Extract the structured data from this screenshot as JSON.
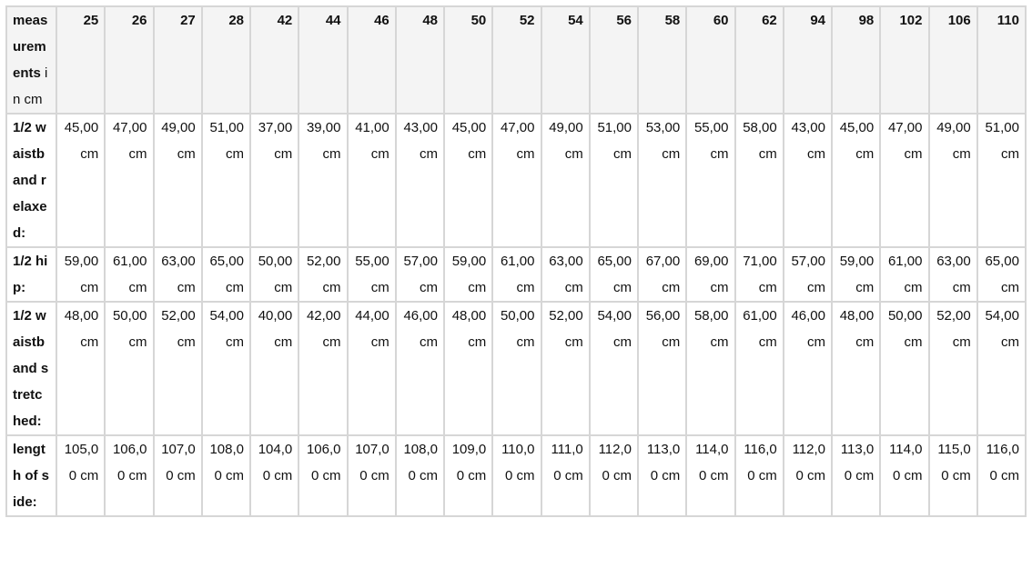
{
  "table": {
    "corner_bold": "measurements",
    "corner_normal": " in cm",
    "sizes": [
      "25",
      "26",
      "27",
      "28",
      "42",
      "44",
      "46",
      "48",
      "50",
      "52",
      "54",
      "56",
      "58",
      "60",
      "62",
      "94",
      "98",
      "102",
      "106",
      "110"
    ],
    "rows": [
      {
        "label": "1/2 waistband relaxed:",
        "values": [
          "45,00 cm",
          "47,00 cm",
          "49,00 cm",
          "51,00 cm",
          "37,00 cm",
          "39,00 cm",
          "41,00 cm",
          "43,00 cm",
          "45,00 cm",
          "47,00 cm",
          "49,00 cm",
          "51,00 cm",
          "53,00 cm",
          "55,00 cm",
          "58,00 cm",
          "43,00 cm",
          "45,00 cm",
          "47,00 cm",
          "49,00 cm",
          "51,00 cm"
        ]
      },
      {
        "label": "1/2 hip:",
        "values": [
          "59,00 cm",
          "61,00 cm",
          "63,00 cm",
          "65,00 cm",
          "50,00 cm",
          "52,00 cm",
          "55,00 cm",
          "57,00 cm",
          "59,00 cm",
          "61,00 cm",
          "63,00 cm",
          "65,00 cm",
          "67,00 cm",
          "69,00 cm",
          "71,00 cm",
          "57,00 cm",
          "59,00 cm",
          "61,00 cm",
          "63,00 cm",
          "65,00 cm"
        ]
      },
      {
        "label": "1/2 waistband stretched:",
        "values": [
          "48,00 cm",
          "50,00 cm",
          "52,00 cm",
          "54,00 cm",
          "40,00 cm",
          "42,00 cm",
          "44,00 cm",
          "46,00 cm",
          "48,00 cm",
          "50,00 cm",
          "52,00 cm",
          "54,00 cm",
          "56,00 cm",
          "58,00 cm",
          "61,00 cm",
          "46,00 cm",
          "48,00 cm",
          "50,00 cm",
          "52,00 cm",
          "54,00 cm"
        ]
      },
      {
        "label": "length of side:",
        "values": [
          "105,00 cm",
          "106,00 cm",
          "107,00 cm",
          "108,00 cm",
          "104,00 cm",
          "106,00 cm",
          "107,00 cm",
          "108,00 cm",
          "109,00 cm",
          "110,00 cm",
          "111,00 cm",
          "112,00 cm",
          "113,00 cm",
          "114,00 cm",
          "116,00 cm",
          "112,00 cm",
          "113,00 cm",
          "114,00 cm",
          "115,00 cm",
          "116,00 cm"
        ]
      }
    ]
  }
}
